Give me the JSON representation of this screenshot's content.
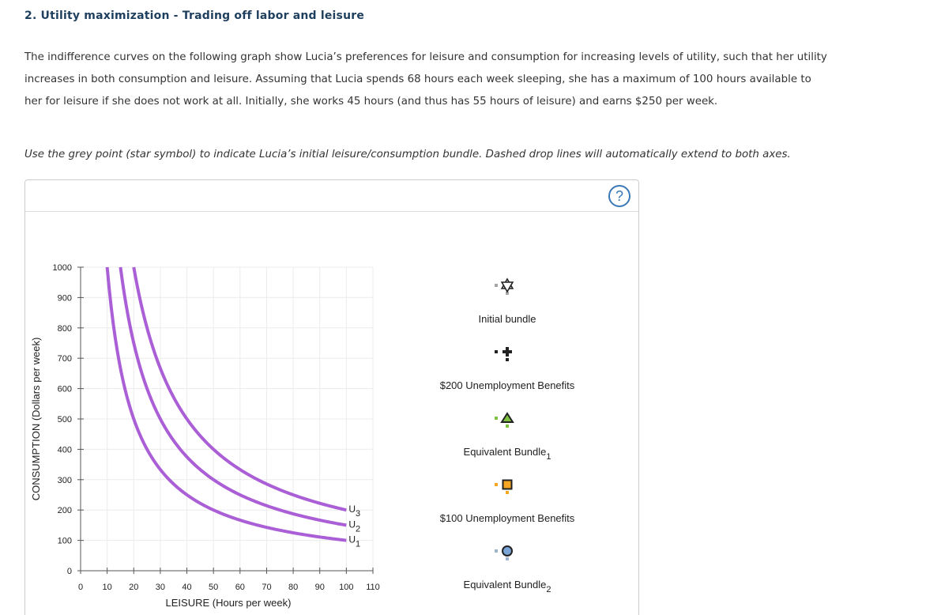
{
  "question": {
    "title": "2. Utility maximization - Trading off labor and leisure",
    "paragraph_lines": [
      "The indifference curves on the following graph show Lucia’s preferences for leisure and consumption for increasing levels of utility, such that her utility",
      "increases in both consumption and leisure. Assuming that Lucia spends 68 hours each week sleeping, she has a maximum of 100 hours available to",
      "her for leisure if she does not work at all. Initially, she works 45 hours (and thus has 55 hours of leisure) and earns $250 per week."
    ],
    "instruction": "Use the grey point (star symbol) to indicate Lucia’s initial leisure/consumption bundle. Dashed drop lines will automatically extend to both axes."
  },
  "panel": {
    "help_label": "?",
    "help_icon": "question-mark-icon"
  },
  "chart_data": {
    "type": "line",
    "xlabel": "LEISURE (Hours per week)",
    "ylabel": "CONSUMPTION (Dollars per week)",
    "xlim": [
      0,
      110
    ],
    "ylim": [
      0,
      1000
    ],
    "xticks": [
      0,
      10,
      20,
      30,
      40,
      50,
      60,
      70,
      80,
      90,
      100,
      110
    ],
    "yticks": [
      0,
      100,
      200,
      300,
      400,
      500,
      600,
      700,
      800,
      900,
      1000
    ],
    "grid": true,
    "curve_color": "#ab5fd6",
    "series": [
      {
        "name": "U",
        "subscript": "1",
        "k": 10000,
        "x_start": 10,
        "x_end": 100,
        "label_y": 100
      },
      {
        "name": "U",
        "subscript": "2",
        "k": 15000,
        "x_start": 15,
        "x_end": 100,
        "label_y": 150
      },
      {
        "name": "U",
        "subscript": "3",
        "k": 20000,
        "x_start": 20,
        "x_end": 100,
        "label_y": 200
      }
    ]
  },
  "palette": [
    {
      "id": "initial",
      "label": "Initial bundle",
      "subscript": "",
      "shape": "star",
      "fill": "#ffffff",
      "stroke": "#222222",
      "dash_color": "#a6a6a6",
      "icon": "star-icon"
    },
    {
      "id": "benefit200",
      "label": "$200 Unemployment Benefits",
      "subscript": "",
      "shape": "plus",
      "fill": "#222222",
      "stroke": "#222222",
      "dash_color": "#222222",
      "icon": "plus-icon"
    },
    {
      "id": "equiv1",
      "label": "Equivalent Bundle",
      "subscript": "1",
      "shape": "triangle",
      "fill": "#7fc241",
      "stroke": "#222222",
      "dash_color": "#7fc241",
      "icon": "triangle-icon"
    },
    {
      "id": "benefit100",
      "label": "$100 Unemployment Benefits",
      "subscript": "",
      "shape": "square",
      "fill": "#f5a623",
      "stroke": "#222222",
      "dash_color": "#f5a623",
      "icon": "square-icon"
    },
    {
      "id": "equiv2",
      "label": "Equivalent Bundle",
      "subscript": "2",
      "shape": "circle",
      "fill": "#7aa3d6",
      "stroke": "#222222",
      "dash_color": "#9db4cc",
      "icon": "circle-icon"
    }
  ]
}
